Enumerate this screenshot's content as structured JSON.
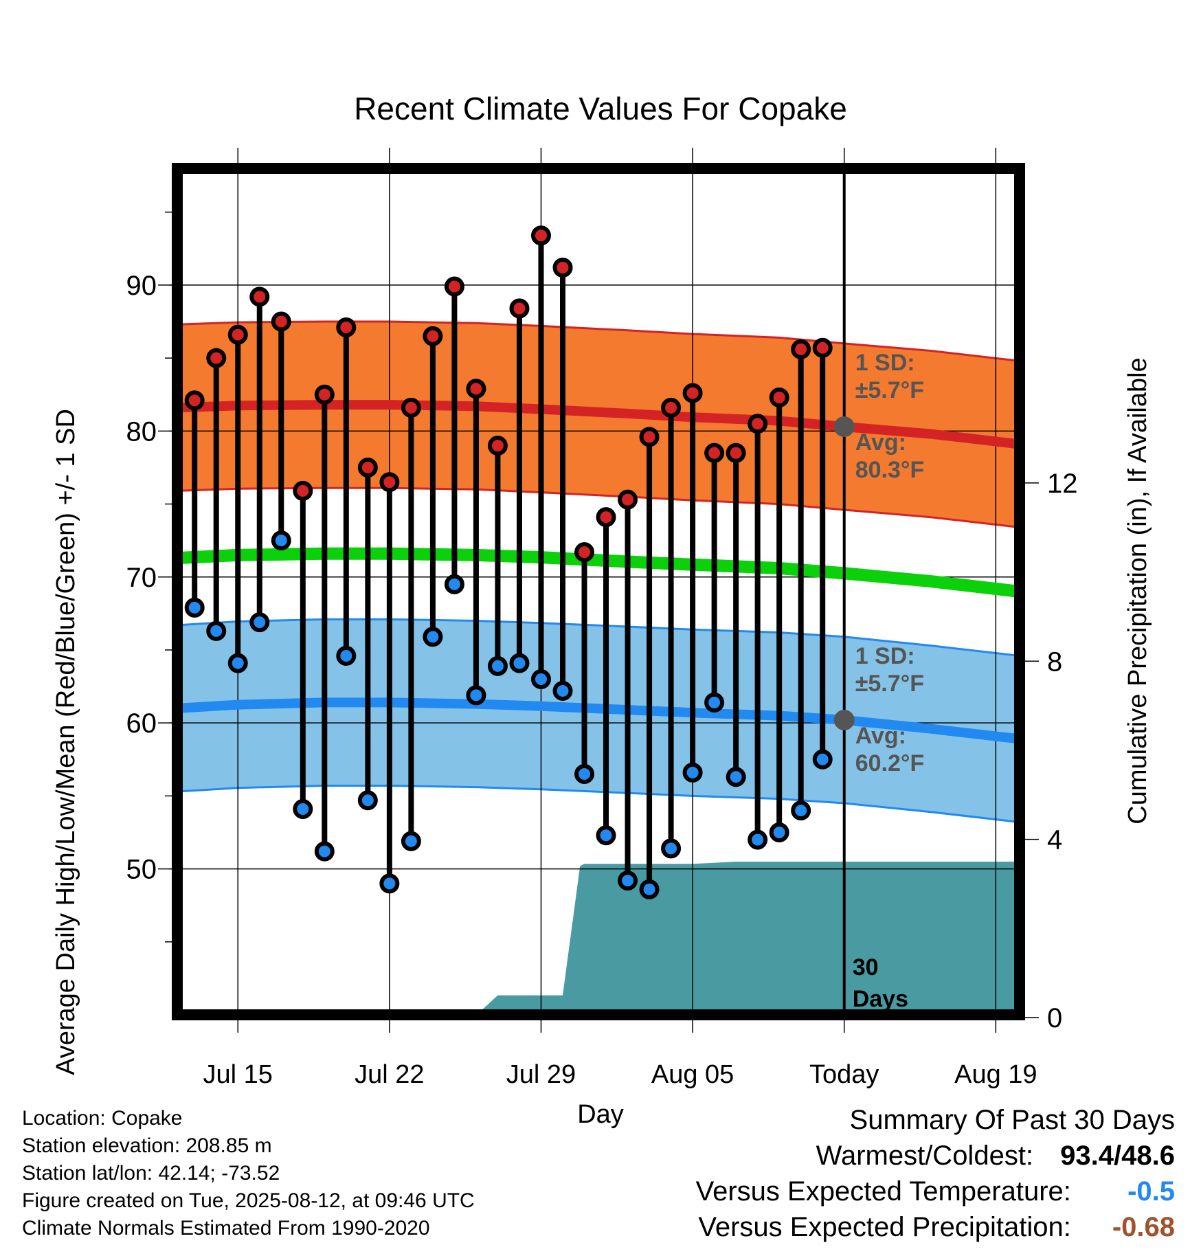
{
  "chart_data": {
    "type": "line",
    "title": "Recent Climate Values For Copake",
    "xlabel": "Day",
    "ylabel": "Average Daily High/Low/Mean (Red/Blue/Green) +/- 1 SD",
    "y2label": "Cumulative Precipitation (in), If Available",
    "ylim": [
      40,
      98
    ],
    "y2lim": [
      0,
      19
    ],
    "y_ticks": [
      50,
      60,
      70,
      80,
      90
    ],
    "y2_ticks": [
      0,
      4,
      8,
      12
    ],
    "x_ticks": [
      {
        "day": 15,
        "label": "Jul 15"
      },
      {
        "day": 22,
        "label": "Jul 22"
      },
      {
        "day": 29,
        "label": "Jul 29"
      },
      {
        "day": 36,
        "label": "Aug 05"
      },
      {
        "day": 43,
        "label": "Today"
      },
      {
        "day": 50,
        "label": "Aug 19"
      }
    ],
    "xlim": [
      11.8,
      52.3
    ],
    "grid": true,
    "days": [
      13,
      14,
      15,
      16,
      17,
      18,
      19,
      20,
      21,
      22,
      23,
      24,
      25,
      26,
      27,
      28,
      29,
      30,
      31,
      32,
      33,
      34,
      35,
      36,
      37,
      38,
      39,
      40,
      41,
      42
    ],
    "series": [
      {
        "name": "Daily High",
        "color": "#d42325",
        "values": [
          82.1,
          85,
          86.6,
          89.2,
          87.5,
          75.9,
          82.5,
          87.1,
          77.5,
          76.5,
          81.6,
          86.5,
          89.9,
          82.9,
          79,
          88.4,
          93.4,
          91.2,
          71.7,
          74.1,
          75.3,
          79.6,
          81.6,
          82.6,
          78.5,
          78.5,
          80.5,
          82.3,
          85.6,
          85.7
        ]
      },
      {
        "name": "Daily Low",
        "color": "#2189f0",
        "values": [
          67.9,
          66.3,
          64.1,
          66.9,
          72.5,
          54.1,
          51.2,
          64.6,
          54.7,
          49,
          51.9,
          65.9,
          69.5,
          61.9,
          63.9,
          64.1,
          63,
          62.2,
          56.5,
          52.3,
          49.2,
          48.6,
          51.4,
          56.6,
          61.4,
          56.3,
          52,
          52.5,
          54,
          57.5
        ]
      }
    ],
    "normals": {
      "days": [
        12.2,
        15,
        19,
        22,
        26,
        29,
        33,
        36,
        40,
        43,
        47,
        51.1
      ],
      "high_avg": [
        81.6,
        81.75,
        81.8,
        81.8,
        81.7,
        81.5,
        81.2,
        80.95,
        80.7,
        80.3,
        79.8,
        79.1
      ],
      "high_sd": 5.7,
      "low_avg": [
        61.0,
        61.25,
        61.4,
        61.4,
        61.3,
        61.15,
        60.9,
        60.7,
        60.5,
        60.2,
        59.6,
        58.9
      ],
      "low_sd": 5.7,
      "mean_avg": [
        71.3,
        71.5,
        71.6,
        71.6,
        71.5,
        71.35,
        71.05,
        70.85,
        70.6,
        70.25,
        69.7,
        69.0
      ],
      "high_color": "#f37a2e",
      "low_color": "#85c2e8",
      "mean_color": "#0ad10a"
    },
    "precip": {
      "color": "#4a9aa2",
      "days": [
        12.2,
        15.5,
        26,
        27,
        30,
        30.8,
        31,
        36,
        38,
        43,
        51.1
      ],
      "values": [
        0,
        0.05,
        0.05,
        0.5,
        0.5,
        3.4,
        3.45,
        3.45,
        3.5,
        3.5,
        3.5
      ]
    },
    "annotations": {
      "high_sd_label": "1 SD:",
      "high_sd_value": "±5.7°F",
      "high_avg_label": "Avg:",
      "high_avg_value": "80.3°F",
      "low_sd_label": "1 SD:",
      "low_sd_value": "±5.7°F",
      "low_avg_label": "Avg:",
      "low_avg_value": "60.2°F",
      "today_avg_high": 80.3,
      "today_avg_low": 60.2,
      "days_label_1": "30",
      "days_label_2": "Days"
    }
  },
  "meta": {
    "location": "Location: Copake",
    "elevation": "Station elevation: 208.85 m",
    "latlon": "Station lat/lon: 42.14; -73.52",
    "created": "Figure created on Tue, 2025-08-12, at 09:46 UTC",
    "normals": "Climate Normals Estimated From 1990-2020"
  },
  "summary": {
    "title": "Summary Of Past 30 Days",
    "warmest_label": "Warmest/Coldest:",
    "warmest_value": "93.4/48.6",
    "temp_label": "Versus Expected Temperature:",
    "temp_value": "-0.5",
    "temp_color": "#2189f0",
    "precip_label": "Versus Expected Precipitation:",
    "precip_value": "-0.68",
    "precip_color": "#a0522d"
  }
}
